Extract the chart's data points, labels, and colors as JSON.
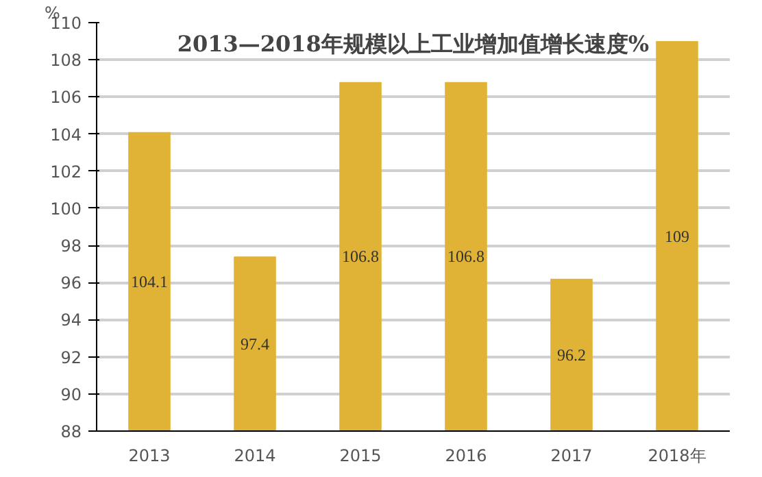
{
  "chart_data": {
    "type": "bar",
    "title": "2013—2018年规模以上工业增加值增长速度%",
    "ylabel": "%",
    "categories": [
      "2013",
      "2014",
      "2015",
      "2016",
      "2017",
      "2018年"
    ],
    "values": [
      104.1,
      97.4,
      106.8,
      106.8,
      96.2,
      109
    ],
    "color": "#e0b336",
    "ylim": [
      88,
      110
    ],
    "yticks": [
      88,
      90,
      92,
      94,
      96,
      98,
      100,
      102,
      104,
      106,
      108,
      110
    ],
    "grid": "y",
    "data_labels": true
  }
}
